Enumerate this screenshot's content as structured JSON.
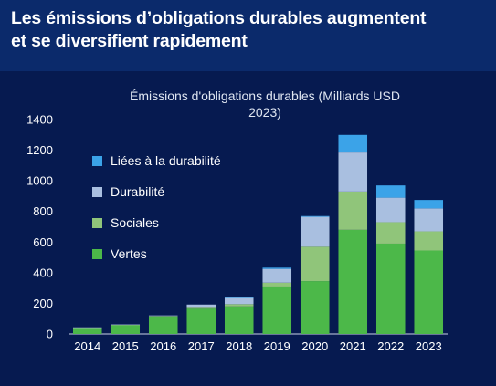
{
  "headline": {
    "line1": "Les émissions d’obligations durables augmentent",
    "line2": "et se diversifient rapidement"
  },
  "chart_data": {
    "type": "bar",
    "stacked": true,
    "title_line1": "Émissions d'obligations durables (Milliards USD",
    "title_line2": "2023)",
    "categories": [
      "2014",
      "2015",
      "2016",
      "2017",
      "2018",
      "2019",
      "2020",
      "2021",
      "2022",
      "2023"
    ],
    "ylim": [
      0,
      1400
    ],
    "yticks": [
      "0",
      "200",
      "400",
      "600",
      "800",
      "1000",
      "1200",
      "1400"
    ],
    "series": [
      {
        "name": "Vertes",
        "color": "#4cb849",
        "values": [
          40,
          58,
          115,
          165,
          180,
          310,
          345,
          680,
          590,
          545
        ]
      },
      {
        "name": "Sociales",
        "color": "#90c57a",
        "values": [
          2,
          2,
          3,
          12,
          15,
          25,
          225,
          250,
          140,
          125
        ]
      },
      {
        "name": "Durabilité",
        "color": "#a9bfe0",
        "values": [
          1,
          2,
          3,
          15,
          40,
          90,
          195,
          255,
          160,
          150
        ]
      },
      {
        "name": "Liées à la durabilité",
        "color": "#3ba3e8",
        "values": [
          0,
          0,
          0,
          0,
          5,
          8,
          5,
          115,
          80,
          55
        ]
      }
    ],
    "legend_order": [
      "Liées à la durabilité",
      "Durabilité",
      "Sociales",
      "Vertes"
    ],
    "legend_position": "top-left",
    "grid": false
  }
}
